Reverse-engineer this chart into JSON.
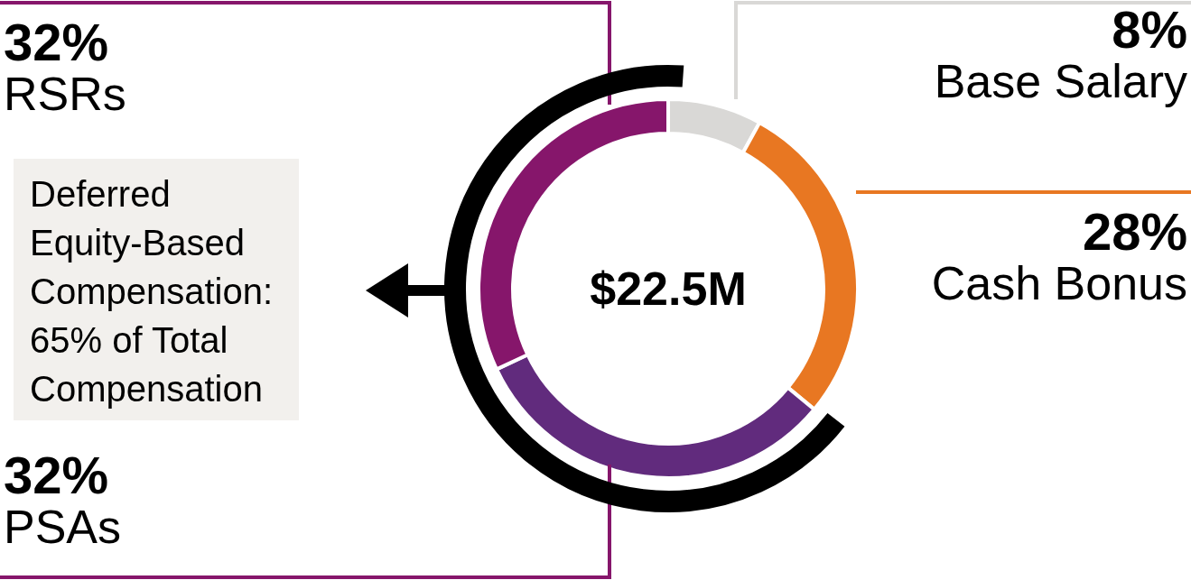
{
  "chart_data": {
    "type": "donut",
    "categories": [
      "Base Salary",
      "Cash Bonus",
      "PSAs",
      "RSRs"
    ],
    "values": [
      8,
      28,
      32,
      32
    ],
    "colors": [
      "#d9d8d6",
      "#e87722",
      "#612b7d",
      "#86166b"
    ],
    "value_labels": [
      "8%",
      "28%",
      "32%",
      "32%"
    ],
    "legend": false,
    "annotations": [
      "$22.5M",
      "Deferred Equity-Based Compensation: 65% of Total Compensation"
    ]
  }
}
